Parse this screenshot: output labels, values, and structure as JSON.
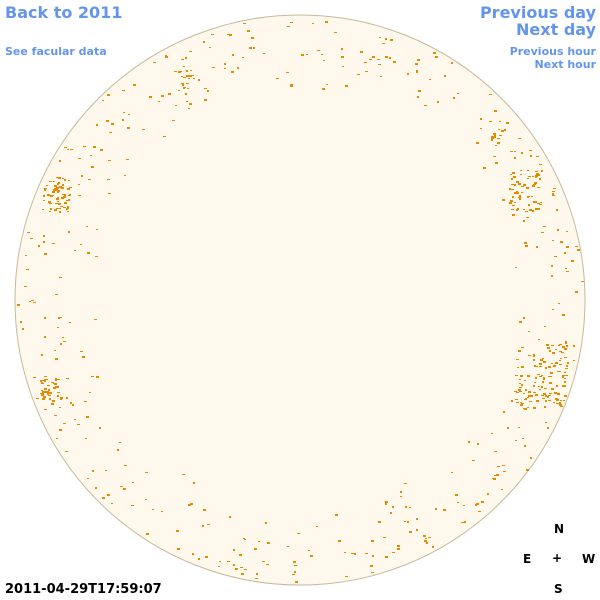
{
  "nav": {
    "back_year": "Back to 2011",
    "facular_link": "See facular data",
    "prev_day": "Previous day",
    "next_day": "Next day",
    "prev_hour": "Previous hour",
    "next_hour": "Next hour"
  },
  "compass": {
    "north": "N",
    "south": "S",
    "east": "E",
    "west": "W",
    "center": "+"
  },
  "timestamp": "2011-04-29T17:59:07",
  "colors": {
    "disk_fill": "#fff9ed",
    "disk_border": "#c8b89a",
    "facula": "#e88a00",
    "link": "#6495ed"
  }
}
